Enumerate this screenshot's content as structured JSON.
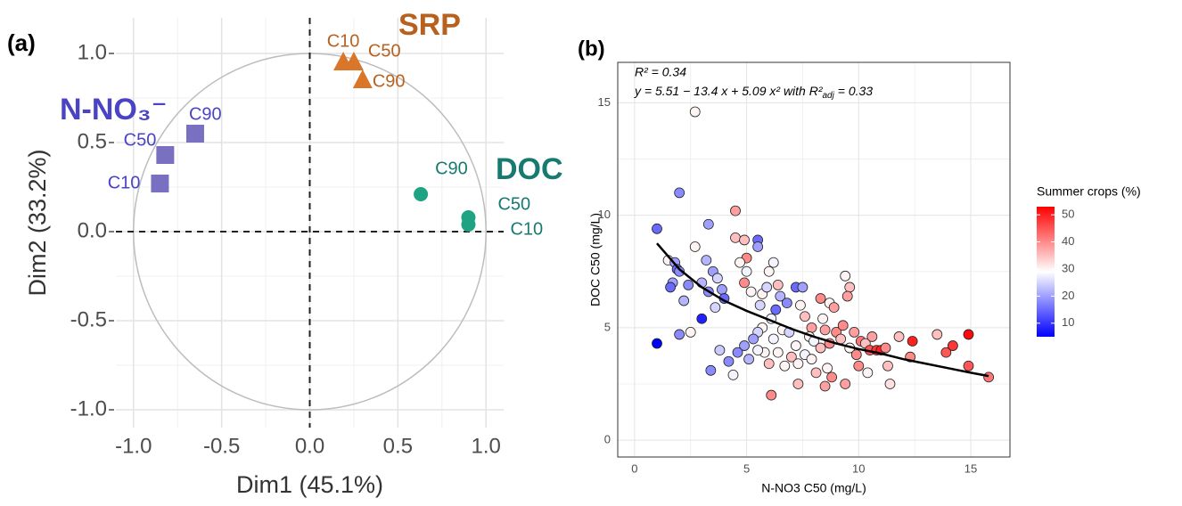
{
  "chart_data": [
    {
      "type": "scatter",
      "panel": "(a)",
      "x_label": "Dim1 (45.1%)",
      "y_label": "Dim2 (33.2%)",
      "xlim": [
        -1.1,
        1.1
      ],
      "ylim": [
        -1.1,
        1.2
      ],
      "xticks": [
        {
          "value": -1,
          "label": "-1.0"
        },
        {
          "value": -0.5,
          "label": "-0.5"
        },
        {
          "value": 0,
          "label": "0.0"
        },
        {
          "value": 0.5,
          "label": "0.5"
        },
        {
          "value": 1,
          "label": "1.0"
        }
      ],
      "yticks": [
        {
          "value": -1,
          "label": "-1.0"
        },
        {
          "value": -0.5,
          "label": "-0.5"
        },
        {
          "value": 0,
          "label": "0.0"
        },
        {
          "value": 0.5,
          "label": "0.5"
        },
        {
          "value": 1,
          "label": "1.0"
        }
      ],
      "grid": true,
      "series": [
        {
          "name": "N-NO₃⁻",
          "color": "#7a70c2",
          "label_color": "#4a44c4",
          "marker": "square",
          "x": [
            -0.85,
            -0.82,
            -0.65
          ],
          "values": [
            0.27,
            0.43,
            0.55
          ],
          "labels": [
            "C10",
            "C50",
            "C90"
          ]
        },
        {
          "name": "SRP",
          "color": "#d9762a",
          "label_color": "#b8611f",
          "marker": "triangle",
          "x": [
            0.19,
            0.25,
            0.3
          ],
          "values": [
            0.95,
            0.95,
            0.85
          ],
          "labels": [
            "C10",
            "C50",
            "C90"
          ]
        },
        {
          "name": "DOC",
          "color": "#1fa383",
          "label_color": "#177a70",
          "marker": "circle",
          "x": [
            0.9,
            0.9,
            0.63
          ],
          "values": [
            0.04,
            0.08,
            0.21
          ],
          "labels": [
            "C10",
            "C50",
            "C90"
          ]
        }
      ]
    },
    {
      "type": "scatter",
      "panel": "(b)",
      "x_label": "N-NO3 C50 (mg/L)",
      "y_label": "DOC C50 (mg/L)",
      "xlim": [
        -0.75,
        16.75
      ],
      "ylim": [
        -0.75,
        16.8
      ],
      "xticks": [
        0,
        5,
        10,
        15
      ],
      "yticks": [
        0,
        5,
        10,
        15
      ],
      "grid": true,
      "annotations": [
        "R² = 0.34",
        {
          "text": "y = 5.51 − 13.4 x + 5.09 x²  with  R²",
          "sub": "adj",
          "tail": " = 0.33"
        }
      ],
      "x": [
        1.0,
        1.0,
        2.0,
        2.7,
        1.5,
        1.8,
        1.9,
        2.0,
        1.7,
        1.6,
        2.4,
        2.2,
        2.0,
        2.5,
        3.0,
        3.3,
        2.7,
        3.2,
        3.5,
        3.7,
        3.0,
        3.3,
        3.9,
        4.0,
        3.6,
        3.4,
        3.8,
        4.2,
        4.4,
        4.5,
        4.5,
        4.9,
        5.0,
        4.7,
        5.5,
        5.5,
        5.0,
        4.9,
        5.2,
        5.6,
        5.7,
        5.9,
        6.2,
        6.0,
        6.4,
        6.5,
        6.3,
        6.8,
        6.1,
        5.7,
        5.5,
        5.3,
        4.9,
        4.6,
        5.1,
        5.8,
        5.5,
        6.6,
        6.9,
        6.2,
        6.4,
        6.0,
        6.1,
        6.7,
        7.0,
        7.2,
        7.3,
        7.6,
        7.2,
        7.5,
        7.4,
        7.6,
        7.9,
        7.8,
        8.0,
        7.9,
        8.1,
        7.3,
        8.3,
        8.4,
        8.7,
        8.5,
        8.3,
        8.7,
        8.9,
        9.0,
        9.2,
        9.4,
        9.6,
        9.5,
        9.3,
        9.6,
        9.8,
        8.6,
        8.8,
        8.5,
        9.4,
        9.9,
        10.1,
        10.3,
        10.0,
        10.4,
        10.5,
        10.8,
        11.0,
        10.6,
        11.2,
        11.3,
        11.4,
        11.8,
        12.4,
        12.3,
        13.5,
        13.9,
        14.2,
        14.9,
        14.9,
        15.8
      ],
      "values": [
        4.3,
        9.4,
        11.0,
        14.6,
        8.0,
        7.9,
        7.6,
        7.5,
        7.0,
        6.8,
        6.9,
        6.2,
        4.7,
        4.8,
        5.4,
        9.6,
        8.6,
        8.0,
        7.5,
        7.2,
        7.0,
        6.6,
        6.7,
        6.3,
        5.9,
        3.1,
        4.0,
        3.5,
        2.9,
        10.2,
        9.0,
        8.9,
        8.1,
        7.9,
        8.9,
        8.6,
        7.5,
        7.0,
        6.6,
        6.0,
        6.5,
        6.8,
        7.9,
        7.5,
        6.9,
        6.4,
        5.8,
        6.1,
        5.4,
        5.0,
        4.8,
        4.5,
        4.2,
        3.9,
        3.6,
        3.9,
        4.0,
        4.9,
        4.8,
        4.5,
        3.9,
        3.4,
        2.0,
        3.3,
        3.7,
        4.2,
        3.4,
        3.8,
        6.8,
        6.8,
        6.0,
        5.5,
        5.0,
        4.6,
        4.4,
        3.6,
        3.0,
        2.5,
        6.3,
        5.4,
        6.1,
        4.9,
        4.1,
        4.3,
        5.9,
        4.8,
        4.5,
        7.3,
        6.8,
        6.4,
        5.1,
        4.1,
        4.8,
        3.2,
        2.8,
        2.4,
        2.5,
        3.8,
        4.4,
        4.3,
        3.3,
        3.0,
        4.0,
        4.0,
        4.0,
        4.6,
        4.1,
        3.3,
        2.5,
        4.6,
        4.4,
        3.7,
        4.7,
        3.9,
        4.2,
        4.7,
        3.3,
        2.8
      ],
      "color_values": [
        5,
        15,
        18,
        30,
        30,
        20,
        15,
        18,
        20,
        15,
        18,
        22,
        18,
        30,
        8,
        20,
        30,
        22,
        20,
        25,
        22,
        18,
        20,
        15,
        25,
        18,
        24,
        18,
        28,
        38,
        35,
        35,
        40,
        30,
        15,
        20,
        28,
        40,
        30,
        25,
        30,
        25,
        28,
        30,
        35,
        22,
        15,
        18,
        28,
        30,
        25,
        20,
        20,
        18,
        22,
        30,
        28,
        30,
        25,
        28,
        30,
        35,
        40,
        30,
        35,
        30,
        30,
        28,
        15,
        20,
        30,
        35,
        38,
        30,
        28,
        30,
        35,
        35,
        40,
        30,
        30,
        38,
        35,
        40,
        38,
        40,
        35,
        30,
        35,
        38,
        40,
        30,
        38,
        30,
        40,
        38,
        38,
        40,
        42,
        35,
        40,
        30,
        45,
        48,
        50,
        38,
        40,
        35,
        32,
        35,
        50,
        40,
        35,
        45,
        48,
        52,
        45,
        42
      ],
      "colorbar": {
        "title": "Summer crops (%)",
        "clim": [
          5,
          53
        ],
        "mid": 29,
        "colors": [
          "#0000ff",
          "#ffffff",
          "#ff0000"
        ],
        "ticks": [
          10,
          20,
          30,
          40,
          50
        ]
      },
      "trend": {
        "color": "#000000",
        "x": [
          1,
          2,
          3,
          4,
          5,
          6,
          7,
          8,
          9,
          10,
          11,
          12,
          13,
          14,
          15,
          15.8
        ],
        "values": [
          8.75,
          7.6,
          6.8,
          6.2,
          5.75,
          5.35,
          4.95,
          4.6,
          4.3,
          4.05,
          3.85,
          3.6,
          3.4,
          3.2,
          3.0,
          2.85
        ]
      }
    }
  ]
}
